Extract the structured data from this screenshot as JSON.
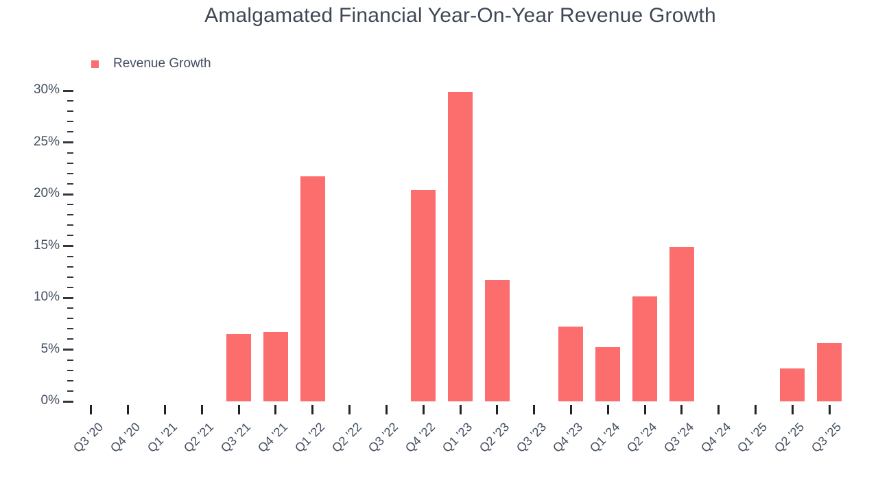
{
  "title": "Amalgamated Financial Year-On-Year Revenue Growth",
  "legend": {
    "label": "Revenue Growth"
  },
  "colors": {
    "bar": "#fc6d6d",
    "title_text": "#3e4756",
    "axis_text": "#434e60",
    "tick": "#30363d",
    "background": "#ffffff"
  },
  "chart_data": {
    "type": "bar",
    "title": "Amalgamated Financial Year-On-Year Revenue Growth",
    "series_name": "Revenue Growth",
    "categories": [
      "Q3 '20",
      "Q4 '20",
      "Q1 '21",
      "Q2 '21",
      "Q3 '21",
      "Q4 '21",
      "Q1 '22",
      "Q2 '22",
      "Q3 '22",
      "Q4 '22",
      "Q1 '23",
      "Q2 '23",
      "Q3 '23",
      "Q4 '23",
      "Q1 '24",
      "Q2 '24",
      "Q3 '24",
      "Q4 '24",
      "Q1 '25",
      "Q2 '25",
      "Q3 '25"
    ],
    "values": [
      null,
      null,
      null,
      null,
      6.5,
      6.7,
      21.7,
      null,
      null,
      20.4,
      29.9,
      11.7,
      null,
      7.2,
      5.2,
      10.1,
      14.9,
      null,
      null,
      3.2,
      5.6
    ],
    "unit": "%",
    "xlabel": "",
    "ylabel": "",
    "ylim": [
      0,
      30
    ],
    "ytick_step": 5,
    "yminor_step": 1,
    "ytick_labels": [
      "0%",
      "5%",
      "10%",
      "15%",
      "20%",
      "25%",
      "30%"
    ],
    "grid": false,
    "legend_position": "top-left"
  }
}
